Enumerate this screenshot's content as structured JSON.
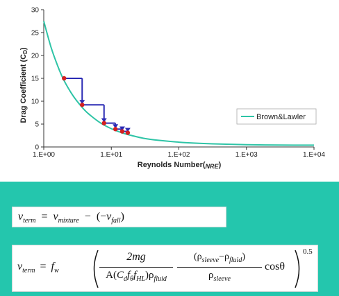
{
  "colors": {
    "curve": "#2ec4a6",
    "step_arrow": "#2a2ab4",
    "point": "#d42020",
    "panel": "#24c6ad"
  },
  "chart_data": {
    "type": "line",
    "ylabel": "Drag Coefficient (C",
    "ylabel_sub": "D",
    "ylabel_close": ")",
    "xlabel": "Reynolds Number(",
    "xlabel_sub": "NRE",
    "xlabel_close": ")",
    "x_scale": "log",
    "xlim": [
      1,
      10000
    ],
    "ylim": [
      0,
      30
    ],
    "x_ticks": [
      "1.E+00",
      "1.E+01",
      "1.E+02",
      "1.E+03",
      "1.E+04"
    ],
    "y_ticks": [
      "0",
      "5",
      "10",
      "15",
      "20",
      "25",
      "30"
    ],
    "grid": false,
    "legend_position": "right",
    "series": [
      {
        "name": "Brown&Lawler",
        "x": [
          1,
          1.3,
          1.7,
          2,
          2.5,
          3,
          4,
          5,
          7,
          10,
          15,
          20,
          30,
          50,
          100,
          200,
          500,
          1000,
          2000,
          5000,
          10000
        ],
        "y": [
          27.5,
          21.5,
          16.8,
          14.5,
          12.0,
          10.3,
          8.1,
          6.8,
          5.2,
          4.0,
          3.0,
          2.5,
          1.9,
          1.45,
          1.05,
          0.8,
          0.6,
          0.5,
          0.43,
          0.4,
          0.4
        ]
      }
    ],
    "points": [
      {
        "x": 2,
        "y": 15
      },
      {
        "x": 3.7,
        "y": 9.2
      },
      {
        "x": 7.8,
        "y": 5.2
      },
      {
        "x": 11.5,
        "y": 3.9
      },
      {
        "x": 14.5,
        "y": 3.4
      },
      {
        "x": 17.5,
        "y": 3.1
      }
    ]
  },
  "equations": {
    "eq1": {
      "v": "v",
      "term": "term",
      "equals": "=",
      "mixture": "mixture",
      "minus": "−",
      "paren_open": "(−",
      "fall": "fall",
      "paren_close": ")"
    },
    "eq2": {
      "v": "v",
      "term": "term",
      "equals": "=",
      "f": "f",
      "w": "w",
      "num1": "2mg",
      "den1_a": "A(",
      "C": "C",
      "d": "d",
      "f_theta": "θ",
      "HL": "HL",
      "den1_close": ")ρ",
      "fluid": "fluid",
      "num2_open": "(ρ",
      "sleeve": "sleeve",
      "num2_minus": "−ρ",
      "num2_close": ")",
      "den2": "ρ",
      "cos": "cosθ",
      "exponent": "0.5"
    }
  }
}
